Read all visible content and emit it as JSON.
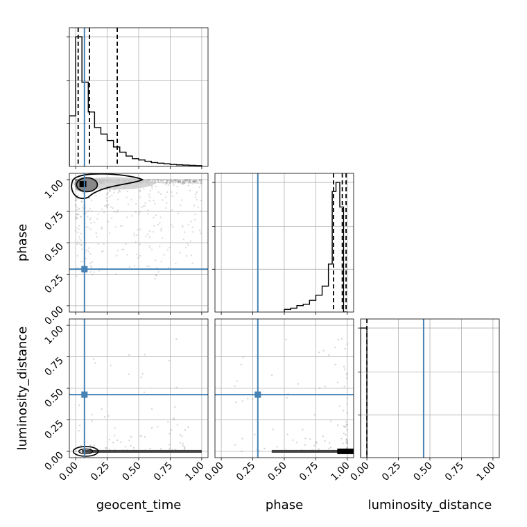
{
  "chart_data": {
    "type": "corner",
    "parameters": [
      "geocent_time",
      "phase",
      "luminosity_distance"
    ],
    "axis_labels": {
      "x": [
        "geocent_time",
        "phase",
        "luminosity_distance"
      ],
      "y_rows": [
        "",
        "phase",
        "luminosity_distance"
      ]
    },
    "ticks": [
      "0.00",
      "0.25",
      "0.50",
      "0.75",
      "1.00"
    ],
    "range": [
      -0.05,
      1.05
    ],
    "grid": true,
    "truth_color": "#4682b4",
    "hist_color": "#000000",
    "injection": {
      "geocent_time": 0.07,
      "phase": 0.29,
      "luminosity_distance": 0.45
    },
    "quantiles": {
      "geocent_time": [
        0.02,
        0.11,
        0.33
      ],
      "phase": [
        0.89,
        0.96,
        0.99
      ],
      "luminosity_distance": [
        0.0
      ]
    },
    "histograms": {
      "geocent_time": {
        "edges": [
          -0.05,
          0.0,
          0.05,
          0.1,
          0.15,
          0.2,
          0.25,
          0.3,
          0.35,
          0.4,
          0.45,
          0.5,
          0.55,
          0.6,
          0.65,
          0.7,
          0.75,
          0.8,
          0.85,
          0.9,
          0.95,
          1.0
        ],
        "counts": [
          0.39,
          1.0,
          0.65,
          0.42,
          0.3,
          0.25,
          0.2,
          0.15,
          0.11,
          0.08,
          0.06,
          0.05,
          0.04,
          0.03,
          0.025,
          0.02,
          0.015,
          0.012,
          0.01,
          0.008,
          0.006
        ]
      },
      "phase": {
        "edges": [
          0.5,
          0.55,
          0.6,
          0.65,
          0.7,
          0.75,
          0.8,
          0.85,
          0.88,
          0.91,
          0.94,
          0.97,
          1.0
        ],
        "counts": [
          0.02,
          0.03,
          0.05,
          0.06,
          0.09,
          0.13,
          0.2,
          0.37,
          0.93,
          1.0,
          0.81,
          0.0
        ]
      },
      "luminosity_distance": {
        "edges": [
          -0.05,
          0.0
        ],
        "counts": [
          1.0
        ]
      }
    },
    "ylim_hist": [
      0,
      1.07
    ]
  }
}
